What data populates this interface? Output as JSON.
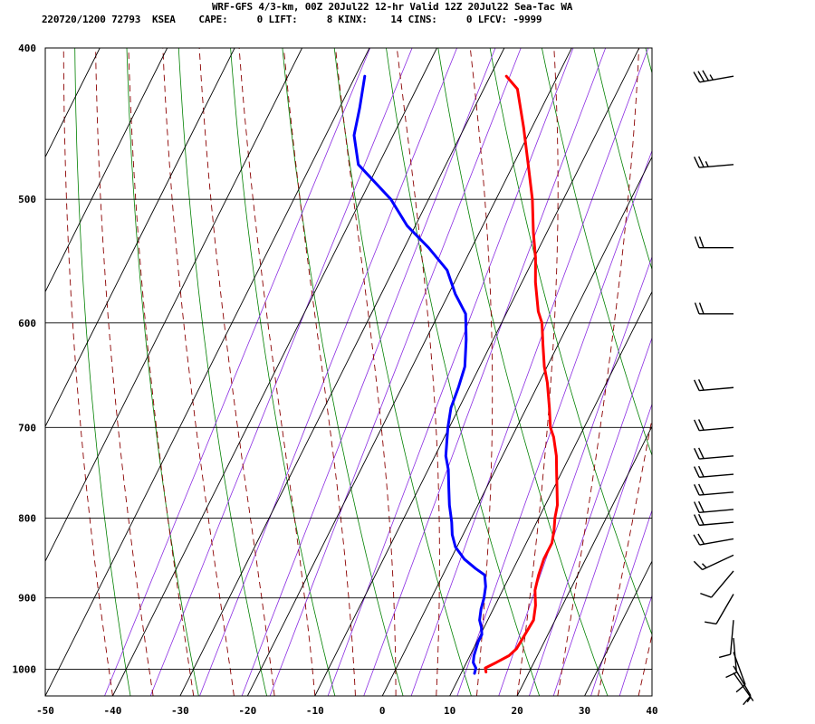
{
  "header": {
    "title": "WRF-GFS 4/3-km, 00Z 20Jul22 12-hr Valid 12Z 20Jul22 Sea-Tac WA",
    "stats": "220720/1200 72793  KSEA    CAPE:     0 LIFT:     8 KINX:    14 CINS:     0 LFCV: -9999"
  },
  "chart_data": {
    "type": "line",
    "title": "WRF-GFS 4/3-km, 00Z 20Jul22 12-hr Valid 12Z 20Jul22 Sea-Tac WA",
    "xlabel": "",
    "ylabel": "",
    "x_ticks": [
      "-50",
      "-40",
      "-30",
      "-20",
      "-10",
      "0",
      "10",
      "20",
      "30",
      "40"
    ],
    "y_ticks": [
      "400",
      "500",
      "600",
      "700",
      "800",
      "900",
      "1000"
    ],
    "xlim": [
      -50,
      40
    ],
    "ylim_pressure": [
      1040,
      400
    ],
    "grid": true,
    "colors": {
      "temperature": "#ff0000",
      "dewpoint": "#0000ff",
      "dry_adiabat": "#008000",
      "moist_adiabat": "#8b0000",
      "mixing_ratio": "#8a2be2",
      "grid": "#000000"
    },
    "series": [
      {
        "key": "temperature",
        "points": [
          [
            13.6,
            1004
          ],
          [
            13.2,
            998
          ],
          [
            14.4,
            990
          ],
          [
            15.8,
            980
          ],
          [
            16.4,
            970
          ],
          [
            16.6,
            950
          ],
          [
            16.8,
            930
          ],
          [
            16.0,
            910
          ],
          [
            14.8,
            890
          ],
          [
            14.2,
            870
          ],
          [
            13.8,
            850
          ],
          [
            13.8,
            830
          ],
          [
            13.2,
            815
          ],
          [
            12.4,
            800
          ],
          [
            11.8,
            785
          ],
          [
            10.8,
            770
          ],
          [
            9.4,
            750
          ],
          [
            8.0,
            730
          ],
          [
            6.2,
            710
          ],
          [
            5.0,
            700
          ],
          [
            3.4,
            680
          ],
          [
            1.2,
            655
          ],
          [
            -0.4,
            640
          ],
          [
            -2.2,
            620
          ],
          [
            -4.0,
            600
          ],
          [
            -5.4,
            590
          ],
          [
            -8.0,
            565
          ],
          [
            -9.8,
            545
          ],
          [
            -12.0,
            525
          ],
          [
            -14.6,
            500
          ],
          [
            -17.8,
            475
          ],
          [
            -21.2,
            450
          ],
          [
            -25.0,
            425
          ],
          [
            -27.6,
            417
          ]
        ]
      },
      {
        "key": "dewpoint",
        "points": [
          [
            12.0,
            1006
          ],
          [
            11.8,
            998
          ],
          [
            11.0,
            990
          ],
          [
            10.6,
            980
          ],
          [
            10.2,
            960
          ],
          [
            10.2,
            950
          ],
          [
            9.6,
            940
          ],
          [
            8.8,
            930
          ],
          [
            8.2,
            915
          ],
          [
            7.8,
            900
          ],
          [
            7.2,
            885
          ],
          [
            6.2,
            870
          ],
          [
            4.4,
            862
          ],
          [
            2.0,
            850
          ],
          [
            -0.2,
            835
          ],
          [
            -1.6,
            820
          ],
          [
            -2.6,
            805
          ],
          [
            -3.4,
            795
          ],
          [
            -4.2,
            785
          ],
          [
            -5.6,
            765
          ],
          [
            -7.0,
            745
          ],
          [
            -8.4,
            730
          ],
          [
            -9.6,
            710
          ],
          [
            -10.2,
            700
          ],
          [
            -11.2,
            680
          ],
          [
            -11.6,
            660
          ],
          [
            -12.2,
            640
          ],
          [
            -14.0,
            615
          ],
          [
            -16.0,
            592
          ],
          [
            -19.0,
            575
          ],
          [
            -22.0,
            555
          ],
          [
            -26.4,
            537
          ],
          [
            -31.2,
            520
          ],
          [
            -35.6,
            500
          ],
          [
            -43.0,
            475
          ],
          [
            -45.8,
            455
          ],
          [
            -47.0,
            437
          ],
          [
            -48.6,
            417
          ]
        ]
      }
    ],
    "wind_barbs": {
      "units": "kt",
      "levels": [
        {
          "p": 417,
          "dir": 260,
          "speed": 35
        },
        {
          "p": 475,
          "dir": 265,
          "speed": 25
        },
        {
          "p": 537,
          "dir": 270,
          "speed": 20
        },
        {
          "p": 592,
          "dir": 270,
          "speed": 20
        },
        {
          "p": 660,
          "dir": 265,
          "speed": 20
        },
        {
          "p": 700,
          "dir": 265,
          "speed": 20
        },
        {
          "p": 730,
          "dir": 265,
          "speed": 20
        },
        {
          "p": 750,
          "dir": 265,
          "speed": 20
        },
        {
          "p": 770,
          "dir": 265,
          "speed": 20
        },
        {
          "p": 790,
          "dir": 265,
          "speed": 20
        },
        {
          "p": 805,
          "dir": 265,
          "speed": 20
        },
        {
          "p": 825,
          "dir": 260,
          "speed": 20
        },
        {
          "p": 845,
          "dir": 245,
          "speed": 15
        },
        {
          "p": 865,
          "dir": 220,
          "speed": 10
        },
        {
          "p": 895,
          "dir": 210,
          "speed": 10
        },
        {
          "p": 930,
          "dir": 185,
          "speed": 10
        },
        {
          "p": 955,
          "dir": 175,
          "speed": 10
        },
        {
          "p": 975,
          "dir": 160,
          "speed": 10
        },
        {
          "p": 995,
          "dir": 150,
          "speed": 10
        },
        {
          "p": 1005,
          "dir": 145,
          "speed": 5
        }
      ]
    }
  }
}
